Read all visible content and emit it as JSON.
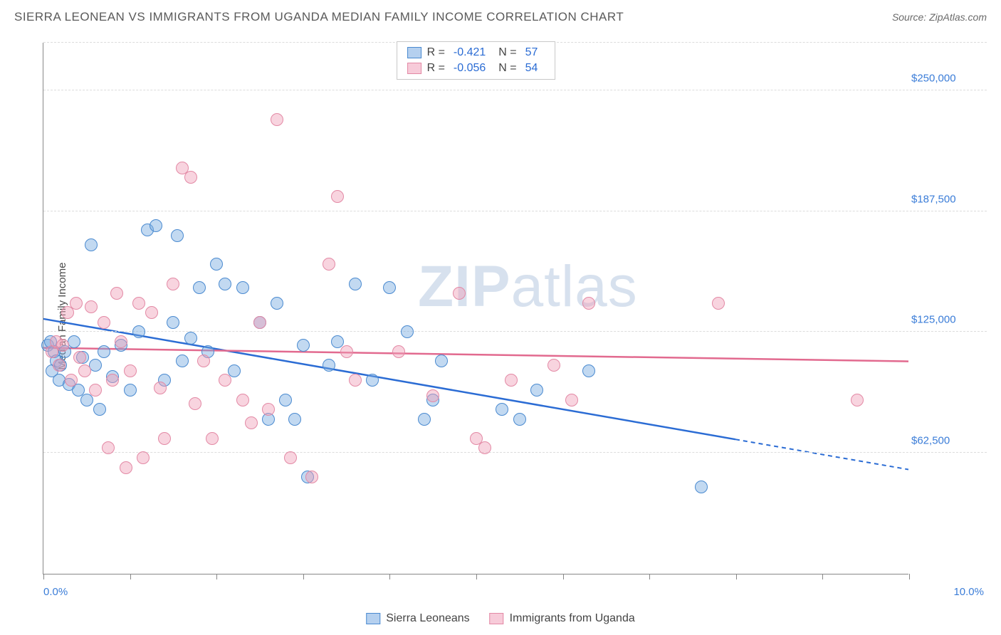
{
  "header": {
    "title": "SIERRA LEONEAN VS IMMIGRANTS FROM UGANDA MEDIAN FAMILY INCOME CORRELATION CHART",
    "source": "Source: ZipAtlas.com"
  },
  "ylabel": "Median Family Income",
  "watermark_a": "ZIP",
  "watermark_b": "atlas",
  "chart": {
    "type": "scatter",
    "xlim": [
      0,
      10
    ],
    "ylim": [
      0,
      275000
    ],
    "yticks": [
      {
        "v": 62500,
        "label": "$62,500"
      },
      {
        "v": 125000,
        "label": "$125,000"
      },
      {
        "v": 187500,
        "label": "$187,500"
      },
      {
        "v": 250000,
        "label": "$250,000"
      }
    ],
    "xticks_minor": [
      0,
      1,
      2,
      3,
      4,
      5,
      6,
      7,
      8,
      9,
      10
    ],
    "xlab_left": "0.0%",
    "xlab_right": "10.0%",
    "series": [
      {
        "key": "blue",
        "name": "Sierra Leoneans",
        "color_fill": "rgba(120,170,225,0.45)",
        "color_stroke": "#4a8ad0",
        "trend_color": "#2b6cd4",
        "r": "-0.421",
        "n": "57",
        "trend_y0": 132000,
        "trend_y1": 54000,
        "points": [
          [
            0.05,
            118000
          ],
          [
            0.08,
            120000
          ],
          [
            0.1,
            105000
          ],
          [
            0.12,
            115000
          ],
          [
            0.15,
            110000
          ],
          [
            0.18,
            100000
          ],
          [
            0.2,
            108000
          ],
          [
            0.25,
            115000
          ],
          [
            0.3,
            98000
          ],
          [
            0.35,
            120000
          ],
          [
            0.4,
            95000
          ],
          [
            0.45,
            112000
          ],
          [
            0.5,
            90000
          ],
          [
            0.55,
            170000
          ],
          [
            0.6,
            108000
          ],
          [
            0.65,
            85000
          ],
          [
            0.7,
            115000
          ],
          [
            0.8,
            102000
          ],
          [
            0.9,
            118000
          ],
          [
            1.0,
            95000
          ],
          [
            1.1,
            125000
          ],
          [
            1.2,
            178000
          ],
          [
            1.3,
            180000
          ],
          [
            1.4,
            100000
          ],
          [
            1.5,
            130000
          ],
          [
            1.55,
            175000
          ],
          [
            1.6,
            110000
          ],
          [
            1.7,
            122000
          ],
          [
            1.8,
            148000
          ],
          [
            1.9,
            115000
          ],
          [
            2.0,
            160000
          ],
          [
            2.1,
            150000
          ],
          [
            2.2,
            105000
          ],
          [
            2.3,
            148000
          ],
          [
            2.5,
            130000
          ],
          [
            2.6,
            80000
          ],
          [
            2.7,
            140000
          ],
          [
            2.8,
            90000
          ],
          [
            2.9,
            80000
          ],
          [
            3.0,
            118000
          ],
          [
            3.05,
            50000
          ],
          [
            3.3,
            108000
          ],
          [
            3.4,
            120000
          ],
          [
            3.6,
            150000
          ],
          [
            3.8,
            100000
          ],
          [
            4.0,
            148000
          ],
          [
            4.2,
            125000
          ],
          [
            4.4,
            80000
          ],
          [
            4.5,
            90000
          ],
          [
            4.6,
            110000
          ],
          [
            5.3,
            85000
          ],
          [
            5.5,
            80000
          ],
          [
            5.7,
            95000
          ],
          [
            6.3,
            105000
          ],
          [
            7.6,
            45000
          ]
        ]
      },
      {
        "key": "pink",
        "name": "Immigrants from Uganda",
        "color_fill": "rgba(240,160,185,0.45)",
        "color_stroke": "#e389a5",
        "trend_color": "#e26a8f",
        "r": "-0.056",
        "n": "54",
        "trend_y0": 117000,
        "trend_y1": 110000,
        "points": [
          [
            0.1,
            115000
          ],
          [
            0.15,
            120000
          ],
          [
            0.18,
            108000
          ],
          [
            0.22,
            118000
          ],
          [
            0.28,
            135000
          ],
          [
            0.32,
            100000
          ],
          [
            0.38,
            140000
          ],
          [
            0.42,
            112000
          ],
          [
            0.48,
            105000
          ],
          [
            0.55,
            138000
          ],
          [
            0.6,
            95000
          ],
          [
            0.7,
            130000
          ],
          [
            0.75,
            65000
          ],
          [
            0.8,
            100000
          ],
          [
            0.85,
            145000
          ],
          [
            0.9,
            120000
          ],
          [
            0.95,
            55000
          ],
          [
            1.0,
            105000
          ],
          [
            1.1,
            140000
          ],
          [
            1.15,
            60000
          ],
          [
            1.25,
            135000
          ],
          [
            1.35,
            96000
          ],
          [
            1.4,
            70000
          ],
          [
            1.5,
            150000
          ],
          [
            1.6,
            210000
          ],
          [
            1.7,
            205000
          ],
          [
            1.75,
            88000
          ],
          [
            1.85,
            110000
          ],
          [
            1.95,
            70000
          ],
          [
            2.1,
            100000
          ],
          [
            2.3,
            90000
          ],
          [
            2.4,
            78000
          ],
          [
            2.5,
            130000
          ],
          [
            2.6,
            85000
          ],
          [
            2.7,
            235000
          ],
          [
            2.85,
            60000
          ],
          [
            3.1,
            50000
          ],
          [
            3.3,
            160000
          ],
          [
            3.4,
            195000
          ],
          [
            3.5,
            115000
          ],
          [
            3.6,
            100000
          ],
          [
            4.1,
            115000
          ],
          [
            4.5,
            92000
          ],
          [
            4.8,
            145000
          ],
          [
            5.0,
            70000
          ],
          [
            5.1,
            65000
          ],
          [
            5.4,
            100000
          ],
          [
            5.9,
            108000
          ],
          [
            6.1,
            90000
          ],
          [
            6.3,
            140000
          ],
          [
            7.8,
            140000
          ],
          [
            9.4,
            90000
          ]
        ]
      }
    ]
  },
  "legend_top_prefix_r": "R =",
  "legend_top_prefix_n": "N ="
}
